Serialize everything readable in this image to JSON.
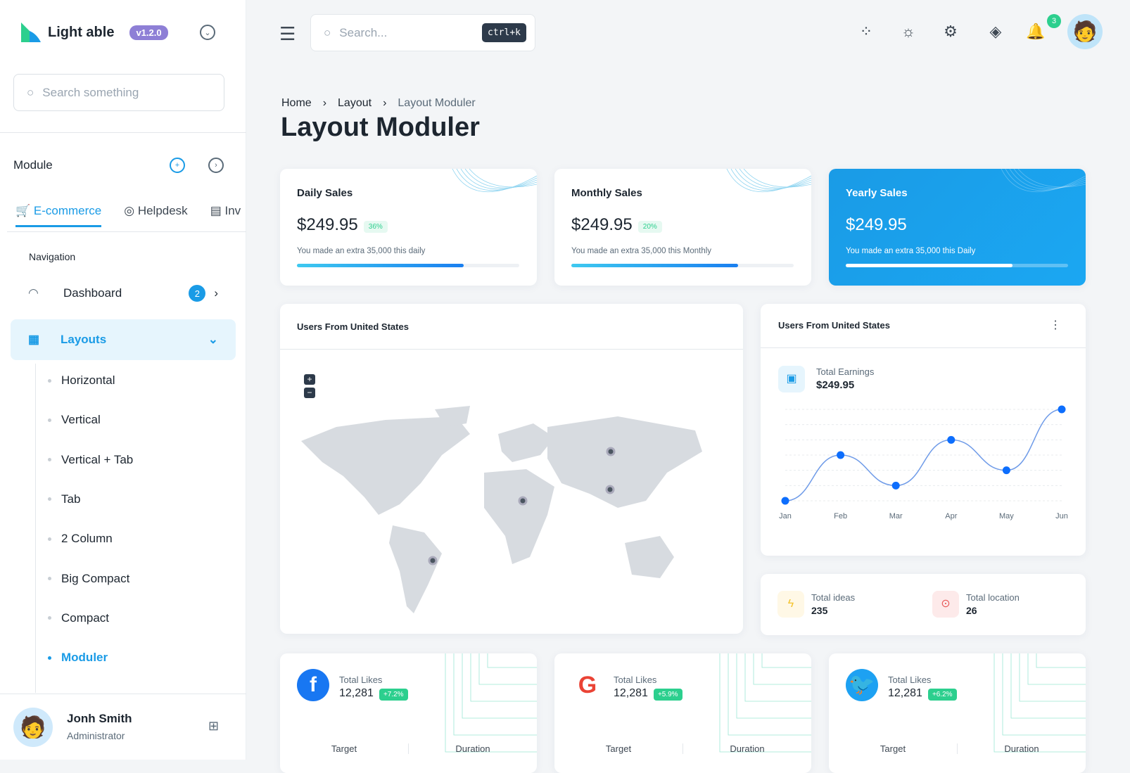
{
  "sidebar": {
    "brand": "Light able",
    "version": "v1.2.0",
    "search_placeholder": "Search something",
    "module_label": "Module",
    "tabs": [
      {
        "label": "E-commerce"
      },
      {
        "label": "Helpdesk"
      },
      {
        "label": "Inv"
      }
    ],
    "section": "Navigation",
    "dashboard": {
      "label": "Dashboard",
      "badge": "2"
    },
    "layouts": {
      "label": "Layouts"
    },
    "sub_items": [
      "Horizontal",
      "Vertical",
      "Vertical + Tab",
      "Tab",
      "2 Column",
      "Big Compact",
      "Compact",
      "Moduler"
    ],
    "user": {
      "name": "Jonh Smith",
      "role": "Administrator"
    }
  },
  "topbar": {
    "search_placeholder": "Search...",
    "shortcut": "ctrl+k",
    "notification_count": "3"
  },
  "breadcrumb": [
    "Home",
    "Layout",
    "Layout Moduler"
  ],
  "page_title": "Layout Moduler",
  "sales": [
    {
      "title": "Daily Sales",
      "amount": "$249.95",
      "pct": "36%",
      "note": "You made an extra 35,000 this daily",
      "progress": 75
    },
    {
      "title": "Monthly Sales",
      "amount": "$249.95",
      "pct": "20%",
      "note": "You made an extra 35,000 this Monthly",
      "progress": 75
    },
    {
      "title": "Yearly Sales",
      "amount": "$249.95",
      "note": "You made an extra 35,000 this Daily",
      "progress": 75
    }
  ],
  "map_card": {
    "title": "Users From United States",
    "zoom_in": "+",
    "zoom_out": "−"
  },
  "earnings_card": {
    "title": "Users From United States",
    "label": "Total Earnings",
    "value": "$249.95"
  },
  "chart_data": {
    "type": "line",
    "categories": [
      "Jan",
      "Feb",
      "Mar",
      "Apr",
      "May",
      "Jun"
    ],
    "values": [
      0,
      3,
      1,
      4,
      2,
      6
    ],
    "ylim": [
      0,
      6
    ],
    "grid": true,
    "color": "#0d6efd"
  },
  "stats": [
    {
      "label": "Total ideas",
      "value": "235"
    },
    {
      "label": "Total location",
      "value": "26"
    }
  ],
  "social": [
    {
      "label": "Total Likes",
      "value": "12,281",
      "change": "+7.2%",
      "target": "Target",
      "duration": "Duration"
    },
    {
      "label": "Total Likes",
      "value": "12,281",
      "change": "+5.9%",
      "target": "Target",
      "duration": "Duration"
    },
    {
      "label": "Total Likes",
      "value": "12,281",
      "change": "+6.2%",
      "target": "Target",
      "duration": "Duration"
    }
  ],
  "colors": {
    "accent": "#1a9be6",
    "yearly_bg": "#1a9be6",
    "badge_green": "#2ccf8e"
  }
}
